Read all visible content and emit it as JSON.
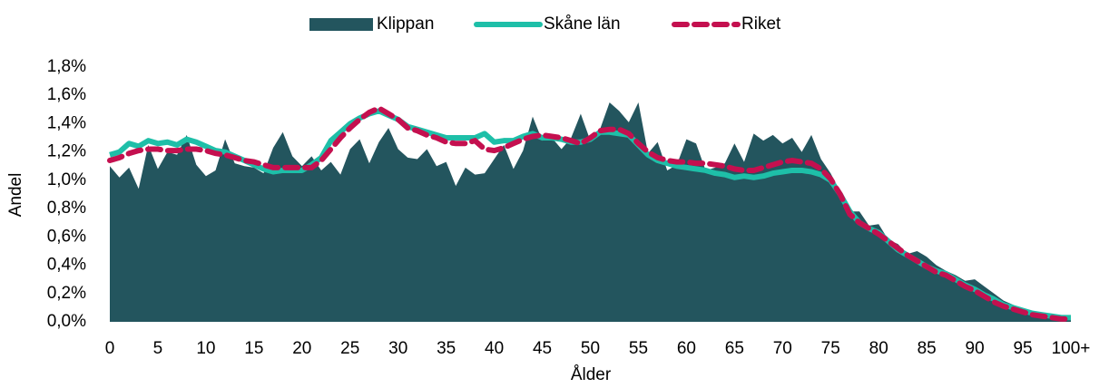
{
  "chart_data": {
    "type": "area_line",
    "x_label": "Ålder",
    "y_label": "Andel",
    "categories": [
      "0",
      null,
      null,
      null,
      null,
      "5",
      null,
      null,
      null,
      null,
      "10",
      null,
      null,
      null,
      null,
      "15",
      null,
      null,
      null,
      null,
      "20",
      null,
      null,
      null,
      null,
      "25",
      null,
      null,
      null,
      null,
      "30",
      null,
      null,
      null,
      null,
      "35",
      null,
      null,
      null,
      null,
      "40",
      null,
      null,
      null,
      null,
      "45",
      null,
      null,
      null,
      null,
      "50",
      null,
      null,
      null,
      null,
      "55",
      null,
      null,
      null,
      null,
      "60",
      null,
      null,
      null,
      null,
      "65",
      null,
      null,
      null,
      null,
      "70",
      null,
      null,
      null,
      null,
      "75",
      null,
      null,
      null,
      null,
      "80",
      null,
      null,
      null,
      null,
      "85",
      null,
      null,
      null,
      null,
      "90",
      null,
      null,
      null,
      null,
      "95",
      null,
      null,
      null,
      null,
      "100+"
    ],
    "ylim": [
      0,
      1.8
    ],
    "yticks": [
      {
        "value": 0,
        "label": "0,0%"
      },
      {
        "value": 0.2,
        "label": "0,2%"
      },
      {
        "value": 0.4,
        "label": "0,4%"
      },
      {
        "value": 0.6,
        "label": "0,6%"
      },
      {
        "value": 0.8,
        "label": "0,8%"
      },
      {
        "value": 1.0,
        "label": "1,0%"
      },
      {
        "value": 1.2,
        "label": "1,2%"
      },
      {
        "value": 1.4,
        "label": "1,4%"
      },
      {
        "value": 1.6,
        "label": "1,6%"
      },
      {
        "value": 1.8,
        "label": "1,8%"
      }
    ],
    "legend": "top",
    "series": [
      {
        "name": "Klippan",
        "style": "area",
        "color": "#23555e",
        "values": [
          1.1,
          1.02,
          1.09,
          0.94,
          1.25,
          1.08,
          1.2,
          1.18,
          1.32,
          1.11,
          1.03,
          1.07,
          1.29,
          1.12,
          1.1,
          1.09,
          1.05,
          1.23,
          1.34,
          1.17,
          1.1,
          1.17,
          1.07,
          1.13,
          1.04,
          1.22,
          1.29,
          1.12,
          1.27,
          1.37,
          1.22,
          1.16,
          1.15,
          1.22,
          1.1,
          1.13,
          0.96,
          1.09,
          1.04,
          1.05,
          1.15,
          1.25,
          1.08,
          1.21,
          1.45,
          1.28,
          1.3,
          1.22,
          1.3,
          1.47,
          1.28,
          1.36,
          1.55,
          1.49,
          1.41,
          1.55,
          1.19,
          1.27,
          1.07,
          1.11,
          1.29,
          1.26,
          1.07,
          1.09,
          1.12,
          1.26,
          1.13,
          1.33,
          1.28,
          1.32,
          1.26,
          1.3,
          1.2,
          1.32,
          1.15,
          1.05,
          0.92,
          0.78,
          0.78,
          0.68,
          0.69,
          0.58,
          0.55,
          0.48,
          0.5,
          0.46,
          0.4,
          0.36,
          0.33,
          0.29,
          0.3,
          0.25,
          0.2,
          0.15,
          0.12,
          0.08,
          0.06,
          0.05,
          0.04,
          0.03,
          0.02
        ]
      },
      {
        "name": "Skåne län",
        "style": "line",
        "color": "#1ebfa8",
        "values": [
          1.18,
          1.2,
          1.26,
          1.24,
          1.28,
          1.26,
          1.27,
          1.25,
          1.29,
          1.27,
          1.24,
          1.21,
          1.2,
          1.17,
          1.14,
          1.11,
          1.08,
          1.06,
          1.07,
          1.07,
          1.07,
          1.11,
          1.16,
          1.28,
          1.34,
          1.4,
          1.44,
          1.47,
          1.49,
          1.46,
          1.43,
          1.38,
          1.36,
          1.34,
          1.32,
          1.3,
          1.3,
          1.3,
          1.3,
          1.33,
          1.27,
          1.28,
          1.28,
          1.31,
          1.33,
          1.3,
          1.3,
          1.29,
          1.27,
          1.27,
          1.29,
          1.34,
          1.34,
          1.33,
          1.32,
          1.25,
          1.18,
          1.14,
          1.12,
          1.1,
          1.09,
          1.08,
          1.07,
          1.05,
          1.04,
          1.02,
          1.03,
          1.02,
          1.03,
          1.05,
          1.06,
          1.07,
          1.07,
          1.06,
          1.04,
          1.0,
          0.9,
          0.78,
          0.7,
          0.66,
          0.63,
          0.57,
          0.51,
          0.47,
          0.43,
          0.39,
          0.36,
          0.34,
          0.3,
          0.26,
          0.23,
          0.19,
          0.16,
          0.12,
          0.1,
          0.08,
          0.06,
          0.05,
          0.04,
          0.03,
          0.03
        ]
      },
      {
        "name": "Riket",
        "style": "dashed",
        "color": "#c4104f",
        "values": [
          1.14,
          1.16,
          1.19,
          1.21,
          1.22,
          1.22,
          1.21,
          1.21,
          1.22,
          1.22,
          1.21,
          1.19,
          1.18,
          1.16,
          1.14,
          1.13,
          1.11,
          1.09,
          1.09,
          1.09,
          1.09,
          1.09,
          1.14,
          1.22,
          1.3,
          1.37,
          1.43,
          1.48,
          1.51,
          1.47,
          1.43,
          1.37,
          1.35,
          1.32,
          1.3,
          1.27,
          1.26,
          1.26,
          1.28,
          1.22,
          1.21,
          1.23,
          1.26,
          1.29,
          1.31,
          1.32,
          1.31,
          1.3,
          1.28,
          1.26,
          1.3,
          1.35,
          1.36,
          1.36,
          1.33,
          1.26,
          1.2,
          1.16,
          1.14,
          1.13,
          1.13,
          1.12,
          1.12,
          1.11,
          1.1,
          1.08,
          1.07,
          1.07,
          1.09,
          1.11,
          1.13,
          1.14,
          1.13,
          1.12,
          1.08,
          1.01,
          0.9,
          0.76,
          0.7,
          0.66,
          0.62,
          0.57,
          0.52,
          0.47,
          0.43,
          0.39,
          0.35,
          0.33,
          0.29,
          0.25,
          0.22,
          0.18,
          0.14,
          0.11,
          0.09,
          0.07,
          0.05,
          0.04,
          0.03,
          0.02,
          0.02
        ]
      }
    ]
  }
}
